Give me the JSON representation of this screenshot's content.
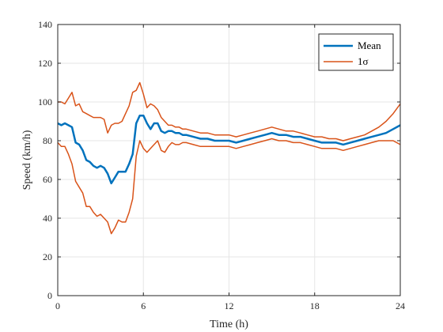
{
  "chart_data": {
    "type": "line",
    "title": "",
    "xlabel": "Time (h)",
    "ylabel": "Speed (km/h)",
    "xlim": [
      0,
      24
    ],
    "ylim": [
      0,
      140
    ],
    "xticks": [
      0,
      6,
      12,
      18,
      24
    ],
    "xtick_labels": [
      "0",
      "6",
      "12",
      "18",
      "24"
    ],
    "yticks": [
      0,
      20,
      40,
      60,
      80,
      100,
      120,
      140
    ],
    "ytick_labels": [
      "0",
      "20",
      "40",
      "60",
      "80",
      "100",
      "120",
      "140"
    ],
    "grid": true,
    "legend_position": "top-right",
    "series": [
      {
        "name": "Mean",
        "color": "#0072BD",
        "x": [
          0,
          0.25,
          0.5,
          0.75,
          1,
          1.25,
          1.5,
          1.75,
          2,
          2.25,
          2.5,
          2.75,
          3,
          3.25,
          3.5,
          3.75,
          4,
          4.25,
          4.5,
          4.75,
          5,
          5.25,
          5.5,
          5.75,
          6,
          6.25,
          6.5,
          6.75,
          7,
          7.25,
          7.5,
          7.75,
          8,
          8.25,
          8.5,
          8.75,
          9,
          9.5,
          10,
          10.5,
          11,
          11.5,
          12,
          12.5,
          13,
          13.5,
          14,
          14.5,
          15,
          15.5,
          16,
          16.5,
          17,
          17.5,
          18,
          18.5,
          19,
          19.5,
          20,
          20.5,
          21,
          21.5,
          22,
          22.5,
          23,
          23.5,
          24
        ],
        "y": [
          89,
          88,
          89,
          88,
          87,
          79,
          78,
          75,
          70,
          69,
          67,
          66,
          67,
          66,
          63,
          58,
          61,
          64,
          64,
          64,
          68,
          73,
          89,
          93,
          93,
          89,
          86,
          89,
          89,
          85,
          84,
          85,
          85,
          84,
          84,
          83,
          83,
          82,
          81,
          81,
          80,
          80,
          80,
          79,
          80,
          81,
          82,
          83,
          84,
          83,
          83,
          82,
          82,
          81,
          80,
          79,
          79,
          79,
          78,
          79,
          80,
          81,
          82,
          83,
          84,
          86,
          88
        ]
      },
      {
        "name": "1σ",
        "color": "#D95319",
        "x": [
          0,
          0.25,
          0.5,
          0.75,
          1,
          1.25,
          1.5,
          1.75,
          2,
          2.25,
          2.5,
          2.75,
          3,
          3.25,
          3.5,
          3.75,
          4,
          4.25,
          4.5,
          4.75,
          5,
          5.25,
          5.5,
          5.75,
          6,
          6.25,
          6.5,
          6.75,
          7,
          7.25,
          7.5,
          7.75,
          8,
          8.25,
          8.5,
          8.75,
          9,
          9.5,
          10,
          10.5,
          11,
          11.5,
          12,
          12.5,
          13,
          13.5,
          14,
          14.5,
          15,
          15.5,
          16,
          16.5,
          17,
          17.5,
          18,
          18.5,
          19,
          19.5,
          20,
          20.5,
          21,
          21.5,
          22,
          22.5,
          23,
          23.5,
          24
        ],
        "y": [
          100,
          100,
          99,
          102,
          105,
          98,
          99,
          95,
          94,
          93,
          92,
          92,
          92,
          91,
          84,
          88,
          89,
          89,
          90,
          94,
          98,
          105,
          106,
          110,
          104,
          97,
          99,
          98,
          96,
          92,
          90,
          88,
          88,
          87,
          87,
          86,
          86,
          85,
          84,
          84,
          83,
          83,
          83,
          82,
          83,
          84,
          85,
          86,
          87,
          86,
          85,
          85,
          84,
          83,
          82,
          82,
          81,
          81,
          80,
          81,
          82,
          83,
          85,
          87,
          90,
          94,
          99
        ]
      },
      {
        "name": "",
        "color": "#D95319",
        "x": [
          0,
          0.25,
          0.5,
          0.75,
          1,
          1.25,
          1.5,
          1.75,
          2,
          2.25,
          2.5,
          2.75,
          3,
          3.25,
          3.5,
          3.75,
          4,
          4.25,
          4.5,
          4.75,
          5,
          5.25,
          5.5,
          5.75,
          6,
          6.25,
          6.5,
          6.75,
          7,
          7.25,
          7.5,
          7.75,
          8,
          8.25,
          8.5,
          8.75,
          9,
          9.5,
          10,
          10.5,
          11,
          11.5,
          12,
          12.5,
          13,
          13.5,
          14,
          14.5,
          15,
          15.5,
          16,
          16.5,
          17,
          17.5,
          18,
          18.5,
          19,
          19.5,
          20,
          20.5,
          21,
          21.5,
          22,
          22.5,
          23,
          23.5,
          24
        ],
        "y": [
          79,
          77,
          77,
          73,
          68,
          59,
          56,
          53,
          46,
          46,
          43,
          41,
          42,
          40,
          38,
          32,
          35,
          39,
          38,
          38,
          43,
          50,
          72,
          80,
          76,
          74,
          76,
          78,
          80,
          75,
          74,
          77,
          79,
          78,
          78,
          79,
          79,
          78,
          77,
          77,
          77,
          77,
          77,
          76,
          77,
          78,
          79,
          80,
          81,
          80,
          80,
          79,
          79,
          78,
          77,
          76,
          76,
          76,
          75,
          76,
          77,
          78,
          79,
          80,
          80,
          80,
          78
        ]
      }
    ]
  }
}
